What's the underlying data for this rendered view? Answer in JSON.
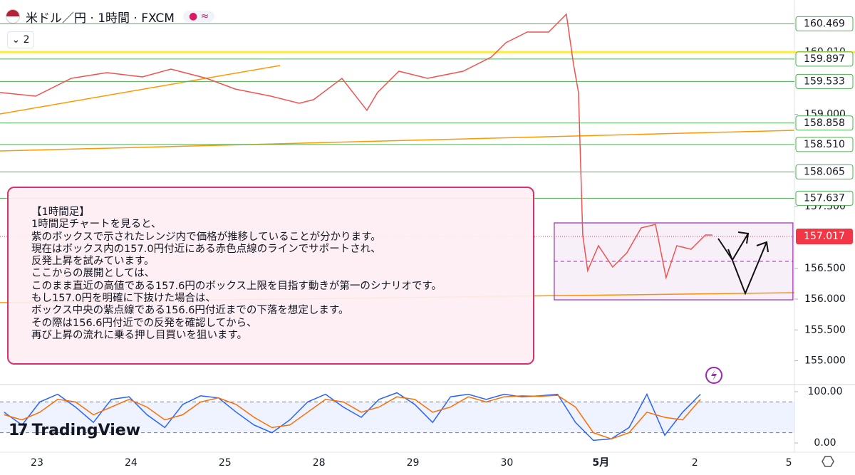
{
  "header": {
    "title": "米ドル／円 · 1時間 · FXCM",
    "indicator_count": "2"
  },
  "note": {
    "lines": [
      "【1時間足】",
      "1時間足チャートを見ると、",
      "紫のボックスで示されたレンジ内で価格が推移していることが分かります。",
      "現在はボックス内の157.0円付近にある赤色点線のラインでサポートされ、",
      "反発上昇を試みています。",
      "ここからの展開としては、",
      "このまま直近の高値である157.6円のボックス上限を目指す動きが第一のシナリオです。",
      "もし157.0円を明確に下抜けた場合は、",
      "ボックス中央の紫点線である156.6円付近までの下落を想定します。",
      "その際は156.6円付近での反発を確認してから、",
      "再び上昇の流れに乗る押し目買いを狙います。"
    ]
  },
  "branding": "TradingView",
  "chart_data": [
    {
      "type": "line",
      "x": [
        -0.394,
        -0.015,
        0.364,
        0.743,
        1.122,
        1.425,
        1.804,
        2.108,
        2.487,
        2.79,
        2.942,
        3.245,
        3.51,
        3.624,
        3.851,
        4.155,
        4.534,
        4.837,
        4.989,
        5.216,
        5.444,
        5.633,
        5.709,
        5.762,
        5.807,
        5.86,
        5.974,
        6.126,
        6.277,
        6.429,
        6.581,
        6.619,
        6.694,
        6.808,
        6.96,
        7.112,
        7.187
      ],
      "series": [
        {
          "color": "#ef5350",
          "values": [
            159.353,
            159.295,
            159.584,
            159.676,
            159.607,
            159.734,
            159.584,
            159.41,
            159.295,
            159.179,
            159.237,
            159.584,
            159.064,
            159.353,
            159.699,
            159.584,
            159.699,
            159.931,
            160.162,
            160.335,
            160.335,
            160.624,
            159.815,
            159.353,
            157.04,
            156.462,
            156.867,
            156.52,
            156.751,
            157.156,
            157.214,
            156.925,
            156.347,
            156.867,
            156.809,
            157.04,
            157.04
          ]
        }
      ],
      "xlim": [
        -0.394,
        8.06
      ],
      "ylim": [
        154.613,
        160.855
      ],
      "xticks": [
        {
          "value": 0,
          "label": "23"
        },
        {
          "value": 1,
          "label": "24"
        },
        {
          "value": 2,
          "label": "25"
        },
        {
          "value": 3,
          "label": "28"
        },
        {
          "value": 4,
          "label": "29"
        },
        {
          "value": 5,
          "label": "30"
        },
        {
          "value": 6,
          "label": "5月"
        },
        {
          "value": 7,
          "label": "2"
        },
        {
          "value": 8,
          "label": "5"
        }
      ],
      "yticks": [
        {
          "value": 155,
          "label": "155.000"
        },
        {
          "value": 155.5,
          "label": "155.500"
        },
        {
          "value": 156,
          "label": "156.000"
        },
        {
          "value": 156.5,
          "label": "156.500"
        },
        {
          "value": 157.5,
          "label": "157.500"
        },
        {
          "value": 159,
          "label": "159.000"
        },
        {
          "value": 160.01,
          "label": "160.010"
        }
      ],
      "levels": [
        160.469,
        159.897,
        159.533,
        158.858,
        {
          "value": 158.51,
          "label": "158.510"
        },
        158.065,
        157.637
      ],
      "level_color": "#4caf50",
      "key_level": 160.01,
      "key_level_color": "#ffeb3b",
      "current_price": 157.017,
      "current_price_color": "#f23645",
      "range_box": {
        "x": [
          5.504,
          8.044
        ],
        "y": [
          155.988,
          157.237
        ],
        "color": "#9c27b0"
      }
    },
    {
      "type": "line",
      "x": [
        -0.35,
        -0.16,
        0.03,
        0.22,
        0.41,
        0.6,
        0.79,
        0.98,
        1.17,
        1.36,
        1.55,
        1.74,
        1.93,
        2.12,
        2.31,
        2.5,
        2.69,
        2.88,
        3.07,
        3.26,
        3.45,
        3.64,
        3.83,
        4.02,
        4.21,
        4.4,
        4.59,
        4.78,
        4.97,
        5.16,
        5.35,
        5.54,
        5.73,
        5.92,
        6.11,
        6.3,
        6.49,
        6.68,
        6.87,
        7.06
      ],
      "series": [
        {
          "color": "#2962ff",
          "values": [
            60,
            35,
            80,
            95,
            70,
            40,
            85,
            90,
            55,
            30,
            75,
            92,
            88,
            60,
            35,
            20,
            45,
            80,
            95,
            70,
            50,
            85,
            98,
            75,
            40,
            90,
            95,
            85,
            95,
            90,
            92,
            95,
            40,
            5,
            8,
            30,
            95,
            15,
            60,
            95
          ]
        },
        {
          "color": "#ff6d00",
          "values": [
            55,
            45,
            60,
            85,
            80,
            55,
            70,
            85,
            70,
            45,
            55,
            80,
            88,
            75,
            50,
            30,
            35,
            60,
            85,
            80,
            60,
            70,
            90,
            85,
            60,
            70,
            90,
            80,
            90,
            92,
            91,
            93,
            70,
            20,
            8,
            20,
            60,
            50,
            45,
            85
          ]
        }
      ],
      "xlim": [
        -0.394,
        8.06
      ],
      "ylim": [
        -18,
        113.9
      ],
      "yticks": [
        {
          "value": 0,
          "label": "0.00"
        },
        {
          "value": 100,
          "label": "100.00"
        }
      ],
      "band_levels": [
        20,
        80
      ],
      "band_color": "#2962ff"
    }
  ]
}
